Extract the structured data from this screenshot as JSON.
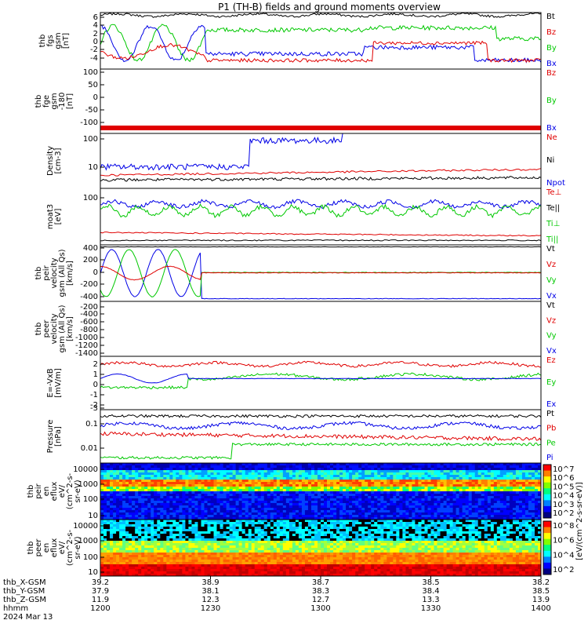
{
  "title": "P1 (TH-B) fields and ground moments overview",
  "colors": {
    "black": "#000000",
    "red": "#e00000",
    "green": "#00c800",
    "blue": "#0000e6"
  },
  "panels": [
    {
      "id": "fgs",
      "ylabel": [
        "thb",
        "fgs",
        "gsm",
        "[nT]"
      ],
      "yticks": [
        "6",
        "4",
        "2",
        "0",
        "-2",
        "-4"
      ],
      "legend": [
        {
          "t": "Bt",
          "c": "black"
        },
        {
          "t": "Bz",
          "c": "red"
        },
        {
          "t": "By",
          "c": "green"
        },
        {
          "t": "Bx",
          "c": "blue"
        }
      ]
    },
    {
      "id": "fge",
      "ylabel": [
        "thb",
        "fge",
        "gsm",
        "-180",
        "[nT]"
      ],
      "yticks": [
        "100",
        "50",
        "0",
        "-50",
        "-100"
      ],
      "legend": [
        {
          "t": "Bz",
          "c": "red"
        },
        {
          "t": "By",
          "c": "green"
        },
        {
          "t": "Bx",
          "c": "blue"
        }
      ]
    },
    {
      "id": "dens",
      "ylabel": [
        "Density",
        "[cm-3]"
      ],
      "yticks": [
        "100",
        "10"
      ],
      "legend": [
        {
          "t": "Ne",
          "c": "red"
        },
        {
          "t": "Ni",
          "c": "black"
        },
        {
          "t": "Npot",
          "c": "blue"
        }
      ]
    },
    {
      "id": "temp",
      "ylabel": [
        "moat3",
        "[eV]"
      ],
      "yticks": [
        "100"
      ],
      "legend": [
        {
          "t": "Te⊥",
          "c": "red"
        },
        {
          "t": "Te||",
          "c": "black"
        },
        {
          "t": "Ti⊥",
          "c": "green"
        },
        {
          "t": "Ti||",
          "c": "green"
        }
      ]
    },
    {
      "id": "peirv",
      "ylabel": [
        "thb",
        "peir",
        "velocity",
        "gsm (All Qs)",
        "[km/s]"
      ],
      "yticks": [
        "400",
        "200",
        "0",
        "-200",
        "-400"
      ],
      "legend": [
        {
          "t": "Vt",
          "c": "black"
        },
        {
          "t": "Vz",
          "c": "red"
        },
        {
          "t": "Vy",
          "c": "green"
        },
        {
          "t": "Vx",
          "c": "blue"
        }
      ]
    },
    {
      "id": "peerv",
      "ylabel": [
        "thb",
        "peer",
        "velocity",
        "gsm (All Qs)",
        "[km/s]"
      ],
      "yticks": [
        "-200",
        "-400",
        "-600",
        "-800",
        "-1000",
        "-1200",
        "-1400"
      ],
      "legend": [
        {
          "t": "Vt",
          "c": "black"
        },
        {
          "t": "Vz",
          "c": "red"
        },
        {
          "t": "Vy",
          "c": "green"
        },
        {
          "t": "Vx",
          "c": "blue"
        }
      ]
    },
    {
      "id": "efield",
      "ylabel": [
        "E=-VxB",
        "[mV/m]"
      ],
      "yticks": [
        "2",
        "1",
        "0",
        "-1",
        "-2",
        "-3"
      ],
      "legend": [
        {
          "t": "Ez",
          "c": "red"
        },
        {
          "t": "Ey",
          "c": "green"
        },
        {
          "t": "Ex",
          "c": "blue"
        }
      ]
    },
    {
      "id": "press",
      "ylabel": [
        "Pressure",
        "[nPa]"
      ],
      "yticks": [
        "0.1",
        "0.01"
      ],
      "legend": [
        {
          "t": "Pt",
          "c": "black"
        },
        {
          "t": "Pb",
          "c": "red"
        },
        {
          "t": "Pe",
          "c": "green"
        },
        {
          "t": "Pi",
          "c": "blue"
        }
      ]
    },
    {
      "id": "peirspec",
      "ylabel": [
        "thb",
        "peir",
        "en",
        "eflux",
        "eV/",
        "(cm^2-s-",
        "sr-eV)"
      ],
      "yticks": [
        "10000",
        "1000",
        "100",
        "10"
      ]
    },
    {
      "id": "peerspec",
      "ylabel": [
        "thb",
        "peer",
        "en",
        "eflux",
        "eV/",
        "(cm^2-s-",
        "sr-eV)"
      ],
      "yticks": [
        "10000",
        "1000",
        "100",
        "10"
      ]
    }
  ],
  "colorbar": {
    "label": "[eV/(cm^2-s-sr-eV)]",
    "top_ticks": [
      "10^7",
      "10^6",
      "10^5",
      "10^4",
      "10^3",
      "10^2"
    ],
    "bottom_ticks": [
      "10^8",
      "10^6",
      "10^4",
      "10^2"
    ]
  },
  "xaxis": {
    "rows": [
      {
        "label": "thb_X-GSM",
        "vals": [
          "39.2",
          "38.9",
          "38.7",
          "38.5",
          "38.2"
        ]
      },
      {
        "label": "thb_Y-GSM",
        "vals": [
          "37.9",
          "38.1",
          "38.3",
          "38.4",
          "38.5"
        ]
      },
      {
        "label": "thb_Z-GSM",
        "vals": [
          "11.9",
          "12.3",
          "12.7",
          "13.3",
          "13.9"
        ]
      },
      {
        "label": "hhmm",
        "vals": [
          "1200",
          "1230",
          "1300",
          "1330",
          "1400"
        ]
      }
    ],
    "date": "2024 Mar 13"
  }
}
